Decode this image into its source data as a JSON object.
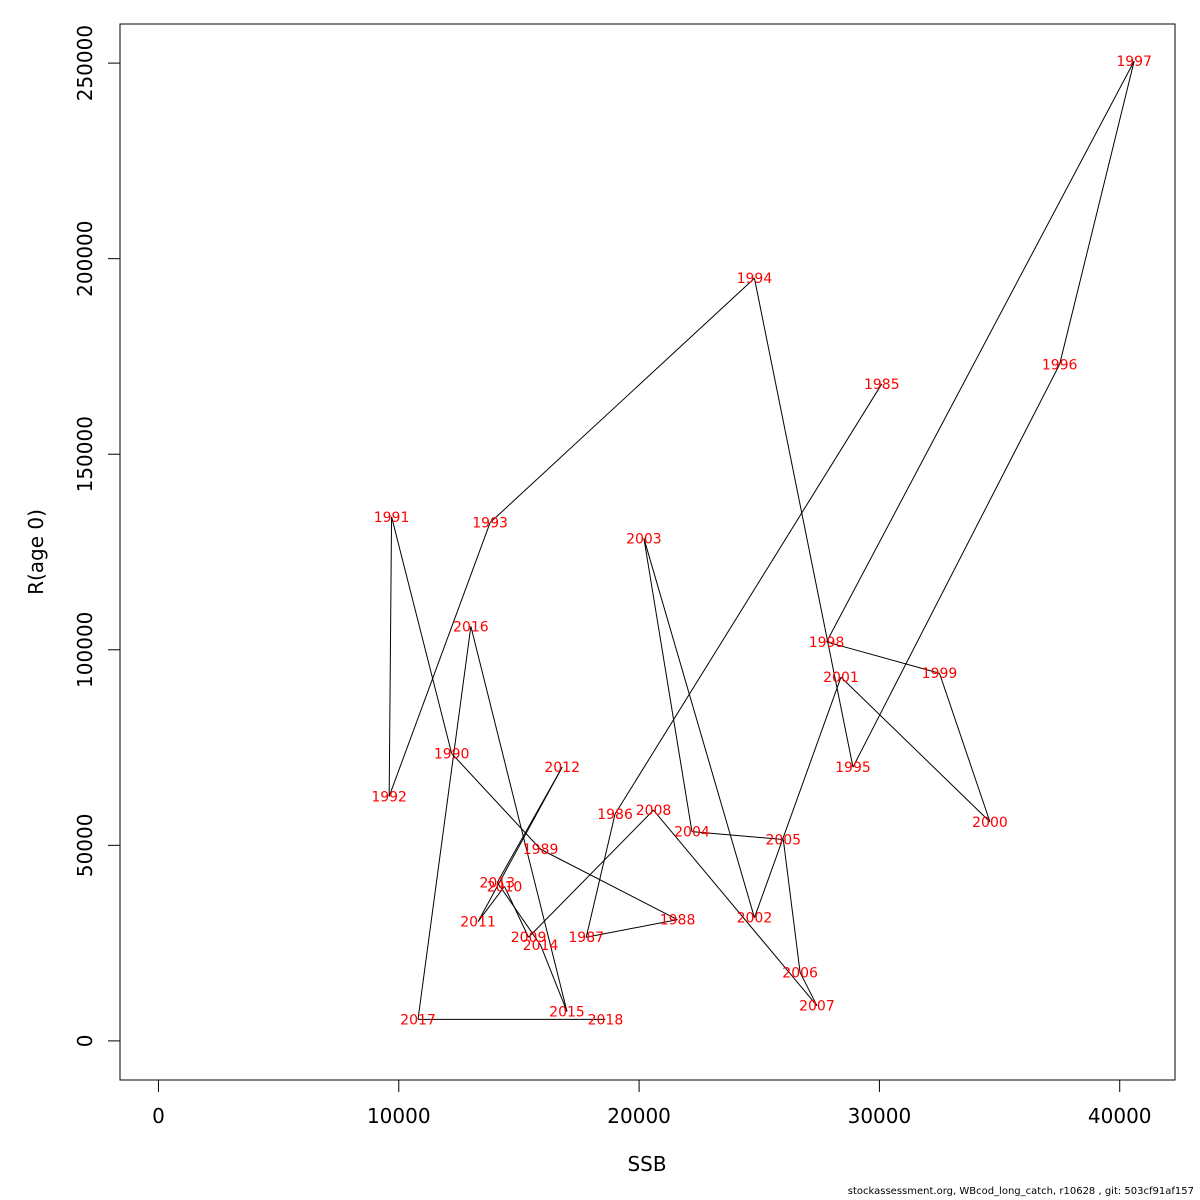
{
  "chart_data": {
    "type": "line",
    "title": "",
    "xlabel": "SSB",
    "ylabel": "R(age 0)",
    "xlim": [
      -1600,
      42300
    ],
    "ylim": [
      -10000,
      260000
    ],
    "x_ticks": [
      0,
      10000,
      20000,
      30000,
      40000
    ],
    "y_ticks": [
      0,
      50000,
      100000,
      150000,
      200000,
      250000
    ],
    "grid": false,
    "legend": "none",
    "line_color": "#000000",
    "label_color": "#ff0000",
    "points": [
      {
        "label": "1985",
        "x": 30100,
        "y": 168000
      },
      {
        "label": "1986",
        "x": 19000,
        "y": 58000
      },
      {
        "label": "1987",
        "x": 17800,
        "y": 26500
      },
      {
        "label": "1988",
        "x": 21600,
        "y": 31000
      },
      {
        "label": "1989",
        "x": 15900,
        "y": 49000
      },
      {
        "label": "1990",
        "x": 12200,
        "y": 73500
      },
      {
        "label": "1991",
        "x": 9700,
        "y": 134000
      },
      {
        "label": "1992",
        "x": 9600,
        "y": 62500
      },
      {
        "label": "1993",
        "x": 13800,
        "y": 132500
      },
      {
        "label": "1994",
        "x": 24800,
        "y": 195000
      },
      {
        "label": "1995",
        "x": 28900,
        "y": 70000
      },
      {
        "label": "1996",
        "x": 37500,
        "y": 173000
      },
      {
        "label": "1997",
        "x": 40600,
        "y": 250500
      },
      {
        "label": "1998",
        "x": 27800,
        "y": 102000
      },
      {
        "label": "1999",
        "x": 32500,
        "y": 94000
      },
      {
        "label": "2000",
        "x": 34600,
        "y": 56000
      },
      {
        "label": "2001",
        "x": 28400,
        "y": 93000
      },
      {
        "label": "2002",
        "x": 24800,
        "y": 31500
      },
      {
        "label": "2003",
        "x": 20200,
        "y": 128500
      },
      {
        "label": "2004",
        "x": 22200,
        "y": 53500
      },
      {
        "label": "2005",
        "x": 26000,
        "y": 51500
      },
      {
        "label": "2006",
        "x": 26700,
        "y": 17500
      },
      {
        "label": "2007",
        "x": 27400,
        "y": 9000
      },
      {
        "label": "2008",
        "x": 20600,
        "y": 59000
      },
      {
        "label": "2009",
        "x": 15400,
        "y": 26500
      },
      {
        "label": "2010",
        "x": 14400,
        "y": 39500
      },
      {
        "label": "2011",
        "x": 13300,
        "y": 30500
      },
      {
        "label": "2012",
        "x": 16800,
        "y": 70000
      },
      {
        "label": "2013",
        "x": 14100,
        "y": 40500
      },
      {
        "label": "2014",
        "x": 15900,
        "y": 24500
      },
      {
        "label": "2015",
        "x": 17000,
        "y": 7500
      },
      {
        "label": "2016",
        "x": 13000,
        "y": 106000
      },
      {
        "label": "2017",
        "x": 10800,
        "y": 5500
      },
      {
        "label": "2018",
        "x": 18600,
        "y": 5500
      }
    ]
  },
  "footer": {
    "text": "stockassessment.org, WBcod_long_catch, r10628 , git: 503cf91af157"
  }
}
